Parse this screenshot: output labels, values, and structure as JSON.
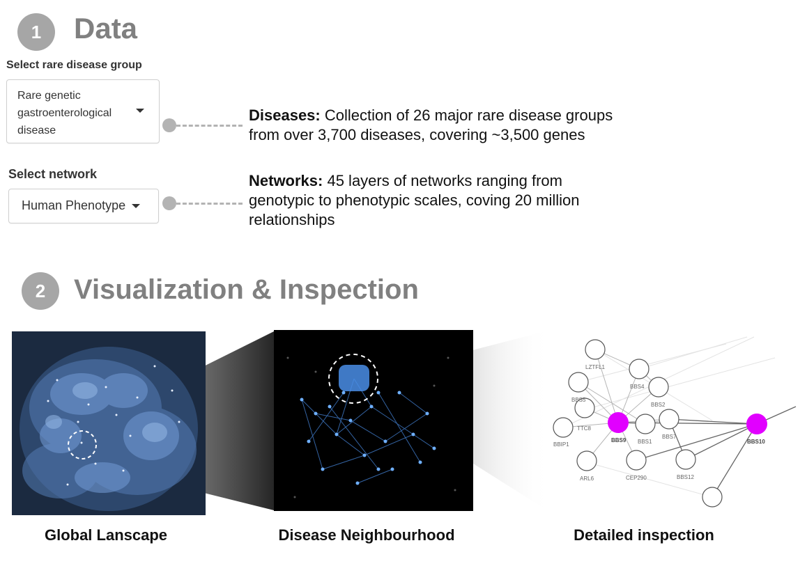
{
  "data_section": {
    "step_number": "1",
    "title": "Data",
    "disease_group": {
      "label": "Select rare disease group",
      "selected_lines": [
        "Rare genetic",
        "gastroenterological",
        "disease"
      ]
    },
    "network": {
      "label": "Select network",
      "selected": "Human Phenotype"
    },
    "diseases_note": {
      "heading": "Diseases:",
      "line1": " Collection of 26 major rare disease groups",
      "line2": "from over 3,700 diseases, covering ~3,500 genes"
    },
    "networks_note": {
      "heading": "Networks:",
      "line1": " 45 layers of networks ranging from",
      "line2": "genotypic to phenotypic scales, coving 20 million",
      "line3": "relationships"
    }
  },
  "visualization_section": {
    "step_number": "2",
    "title": "Visualization & Inspection",
    "panels": [
      {
        "caption": "Global Lanscape"
      },
      {
        "caption": "Disease Neighbourhood"
      },
      {
        "caption": "Detailed inspection"
      }
    ],
    "inspection_nodes": [
      "LZTFL1",
      "BBS4",
      "BBS5",
      "BBS2",
      "TTC8",
      "BBS9",
      "BBS1",
      "BBS7",
      "BBS10",
      "BBIP1",
      "ARL6",
      "CEP290",
      "BBS12"
    ],
    "highlighted_nodes": [
      "BBS9",
      "BBS10"
    ],
    "colors": {
      "highlight": "#e100ff",
      "landscape_bg": "#1b2a40",
      "neighbourhood_bg": "#000000",
      "badge": "#a6a6a6",
      "title": "#808080"
    }
  }
}
